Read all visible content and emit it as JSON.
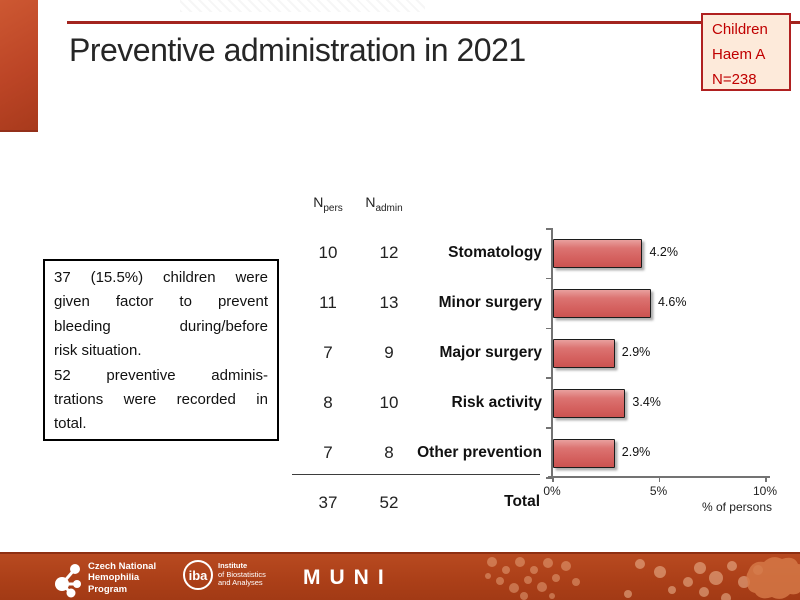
{
  "slide": {
    "title": "Preventive administration in 2021",
    "badge": {
      "lines": [
        "Children",
        "Haem A",
        "N=238"
      ]
    },
    "note": {
      "paragraphs": [
        [
          "37 (15.5%) children were",
          "given factor to prevent",
          "bleeding during/before",
          "risk situation."
        ],
        [
          "52 preventive adminis-",
          "trations were recorded in",
          "total."
        ]
      ]
    }
  },
  "table": {
    "headers": [
      {
        "base": "N",
        "sub": "pers"
      },
      {
        "base": "N",
        "sub": "admin"
      }
    ],
    "total": {
      "n_pers": "37",
      "n_admin": "52",
      "label": "Total"
    }
  },
  "chart_data": {
    "type": "bar",
    "orientation": "horizontal",
    "title": "",
    "categories": [
      "Stomatology",
      "Minor surgery",
      "Major surgery",
      "Risk activity",
      "Other prevention"
    ],
    "values": [
      4.2,
      4.6,
      2.9,
      3.4,
      2.9
    ],
    "value_labels": [
      "4.2%",
      "4.6%",
      "2.9%",
      "3.4%",
      "2.9%"
    ],
    "n_pers": [
      "10",
      "11",
      "7",
      "8",
      "7"
    ],
    "n_admin": [
      "12",
      "13",
      "9",
      "10",
      "8"
    ],
    "xlabel": "% of persons",
    "xlim": [
      0,
      10
    ],
    "xticks": [
      {
        "value": 0,
        "label": "0%"
      },
      {
        "value": 5,
        "label": "5%"
      },
      {
        "value": 10,
        "label": "10%"
      }
    ],
    "grid": false,
    "legend": false,
    "bar_color": "#d96766",
    "bar_border": "#1c1c1c"
  },
  "footer": {
    "cnhp_lines": [
      "Czech National",
      "Hemophilia",
      "Program"
    ],
    "iba_short": "iba",
    "iba_lines": [
      "Institute",
      "of Biostatistics",
      "and Analyses"
    ],
    "muni": "MUNI"
  },
  "colors": {
    "accent_bar": "#bc4526",
    "rule_line": "#a3241f",
    "badge_bg": "#fdeada",
    "badge_border": "#b02020",
    "badge_text": "#c00000",
    "footer_bg": "#ab3f18",
    "axis": "#737373"
  }
}
